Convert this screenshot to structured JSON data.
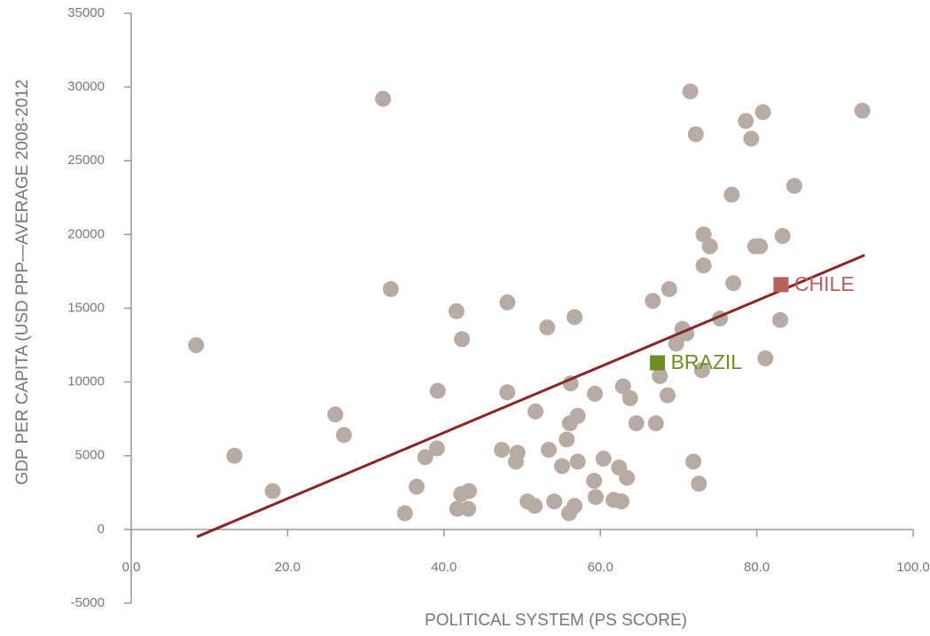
{
  "chart_data": {
    "type": "scatter",
    "x_label": "POLITICAL SYSTEM (PS SCORE)",
    "y_label": "GDP PER CAPITA (USD PPP—AVERAGE 2008-2012",
    "xlim": [
      0,
      100
    ],
    "xticks": [
      {
        "value": 0,
        "label": "0.0"
      },
      {
        "value": 20,
        "label": "20.0"
      },
      {
        "value": 40,
        "label": "40.0"
      },
      {
        "value": 60,
        "label": "60.0"
      },
      {
        "value": 80,
        "label": "80.0"
      },
      {
        "value": 100,
        "label": "100.0"
      }
    ],
    "ylim": [
      -5000,
      35000
    ],
    "yticks": [
      -5000,
      0,
      5000,
      10000,
      15000,
      20000,
      25000,
      30000,
      35000
    ],
    "series": [
      {
        "color": "#b8aba4",
        "x": [
          8.3,
          13.2,
          18.1,
          26.1,
          27.2,
          32.2,
          33.2,
          35.0,
          36.5,
          37.6,
          39.1,
          39.2,
          41.6,
          41.7,
          42.2,
          42.3,
          43.1,
          43.2,
          47.4,
          48.1,
          48.1,
          49.2,
          49.4,
          50.7,
          51.7,
          51.6,
          53.2,
          53.4,
          54.1,
          55.1,
          55.7,
          56.1,
          56.2,
          56.0,
          56.7,
          56.7,
          57.1,
          57.1,
          59.2,
          59.3,
          59.4,
          60.4,
          61.7,
          62.4,
          62.7,
          62.9,
          63.4,
          63.8,
          64.6,
          66.7,
          67.1,
          67.6,
          68.6,
          68.8,
          69.7,
          70.5,
          71.0,
          71.5,
          71.9,
          72.2,
          72.6,
          73.0,
          73.2,
          73.2,
          74.0,
          75.3,
          76.8,
          77.0,
          78.6,
          79.3,
          79.8,
          80.4,
          80.8,
          81.1,
          83.0,
          83.3,
          84.8,
          93.5
        ],
        "y": [
          12500,
          5000,
          2600,
          7800,
          6400,
          29200,
          16300,
          1100,
          2900,
          4900,
          5500,
          9400,
          14800,
          1400,
          2400,
          12900,
          1400,
          2600,
          5400,
          15400,
          9300,
          4600,
          5200,
          1900,
          8000,
          1600,
          13700,
          5400,
          1900,
          4300,
          6100,
          7200,
          9900,
          1100,
          1600,
          14400,
          4600,
          7700,
          3300,
          9200,
          2200,
          4800,
          2000,
          4200,
          1900,
          9700,
          3500,
          8900,
          7200,
          15500,
          7200,
          10400,
          9100,
          16300,
          12600,
          13600,
          13300,
          29700,
          4600,
          26800,
          3100,
          10800,
          17900,
          20000,
          19200,
          14300,
          22700,
          16700,
          27700,
          26500,
          19200,
          19200,
          28300,
          11600,
          14200,
          19900,
          23300,
          28400
        ]
      }
    ],
    "trendline": {
      "color": "#8b2525",
      "x": [
        8.4,
        93.8
      ],
      "y": [
        -500,
        18600
      ]
    },
    "highlights": [
      {
        "label": "CHILE",
        "x": 83.1,
        "y": 16600,
        "color": "#b5625e"
      },
      {
        "label": "BRAZIL",
        "x": 67.3,
        "y": 11300,
        "color": "#6e8f22"
      }
    ]
  }
}
